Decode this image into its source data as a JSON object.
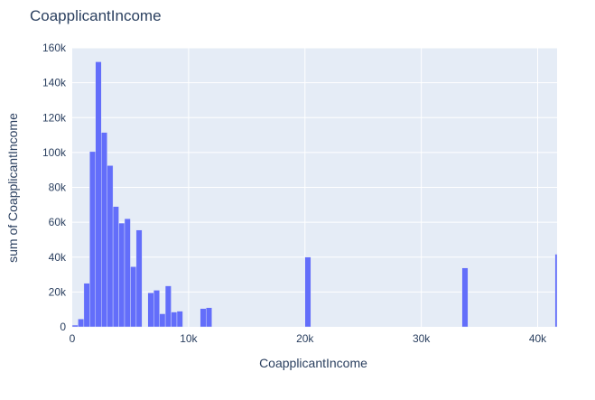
{
  "chart_data": {
    "type": "bar",
    "title": "CoapplicantIncome",
    "xlabel": "CoapplicantIncome",
    "ylabel": "sum of CoapplicantIncome",
    "bin_width": 500,
    "x_range": [
      0,
      41667
    ],
    "y_range": [
      0,
      160000
    ],
    "x_ticks": [
      {
        "value": 0,
        "label": "0"
      },
      {
        "value": 10000,
        "label": "10k"
      },
      {
        "value": 20000,
        "label": "20k"
      },
      {
        "value": 30000,
        "label": "30k"
      },
      {
        "value": 40000,
        "label": "40k"
      }
    ],
    "y_ticks": [
      {
        "value": 0,
        "label": "0"
      },
      {
        "value": 20000,
        "label": "20k"
      },
      {
        "value": 40000,
        "label": "40k"
      },
      {
        "value": 60000,
        "label": "60k"
      },
      {
        "value": 80000,
        "label": "80k"
      },
      {
        "value": 100000,
        "label": "100k"
      },
      {
        "value": 120000,
        "label": "120k"
      },
      {
        "value": 140000,
        "label": "140k"
      },
      {
        "value": 160000,
        "label": "160k"
      }
    ],
    "bins": [
      {
        "x0": 0,
        "x1": 500,
        "value": 1000
      },
      {
        "x0": 500,
        "x1": 1000,
        "value": 4500
      },
      {
        "x0": 1000,
        "x1": 1500,
        "value": 25000
      },
      {
        "x0": 1500,
        "x1": 2000,
        "value": 100500
      },
      {
        "x0": 2000,
        "x1": 2500,
        "value": 152000
      },
      {
        "x0": 2500,
        "x1": 3000,
        "value": 111500
      },
      {
        "x0": 3000,
        "x1": 3500,
        "value": 92500
      },
      {
        "x0": 3500,
        "x1": 4000,
        "value": 69000
      },
      {
        "x0": 4000,
        "x1": 4500,
        "value": 59500
      },
      {
        "x0": 4500,
        "x1": 5000,
        "value": 62000
      },
      {
        "x0": 5000,
        "x1": 5500,
        "value": 34500
      },
      {
        "x0": 5500,
        "x1": 6000,
        "value": 55500
      },
      {
        "x0": 6500,
        "x1": 7000,
        "value": 19500
      },
      {
        "x0": 7000,
        "x1": 7500,
        "value": 21000
      },
      {
        "x0": 7500,
        "x1": 8000,
        "value": 7500
      },
      {
        "x0": 8000,
        "x1": 8500,
        "value": 23500
      },
      {
        "x0": 8500,
        "x1": 9000,
        "value": 8500
      },
      {
        "x0": 9000,
        "x1": 9500,
        "value": 9000
      },
      {
        "x0": 11000,
        "x1": 11500,
        "value": 10500
      },
      {
        "x0": 11500,
        "x1": 12000,
        "value": 11000
      },
      {
        "x0": 20000,
        "x1": 20500,
        "value": 40000
      },
      {
        "x0": 33500,
        "x1": 34000,
        "value": 33800
      },
      {
        "x0": 41500,
        "x1": 42000,
        "value": 41667
      }
    ],
    "grid": true,
    "legend": "none",
    "colors": {
      "bar": "#636efa",
      "plot_bg": "#e5ecf6",
      "grid": "#ffffff",
      "text": "#2a3f5f",
      "tick_text": "#2a3f5f"
    }
  }
}
